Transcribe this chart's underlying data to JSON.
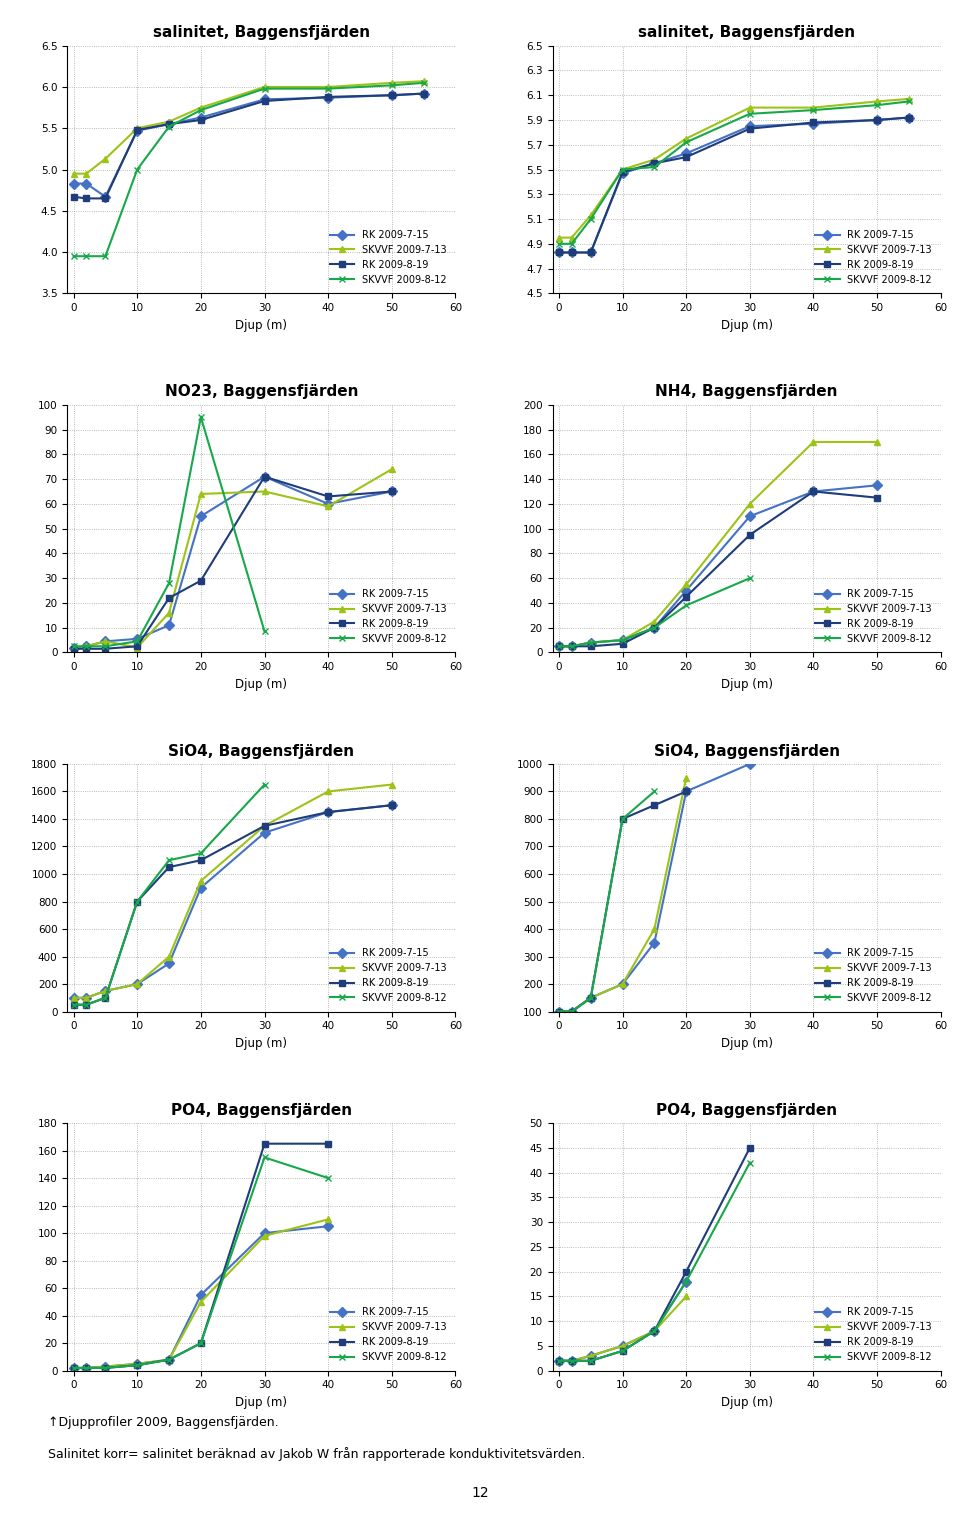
{
  "x": [
    0,
    2,
    5,
    10,
    15,
    20,
    30,
    40,
    50,
    55
  ],
  "series_colors": {
    "RK 2009-7-15": "#4472c4",
    "SKVVF 2009-7-13": "#9dc317",
    "RK 2009-8-19": "#1f3d7a",
    "SKVVF 2009-8-12": "#17a84a"
  },
  "series_markers": {
    "RK 2009-7-15": "D",
    "SKVVF 2009-7-13": "^",
    "RK 2009-8-19": "s",
    "SKVVF 2009-8-12": "x"
  },
  "series_names": [
    "RK 2009-7-15",
    "SKVVF 2009-7-13",
    "RK 2009-8-19",
    "SKVVF 2009-8-12"
  ],
  "sal1": {
    "title": "salinitet, Baggensfjärden",
    "ylabel": "",
    "xlabel": "Djup (m)",
    "ylim": [
      3.5,
      6.5
    ],
    "yticks": [
      3.5,
      4.0,
      4.5,
      5.0,
      5.5,
      6.0,
      6.5
    ],
    "data": {
      "RK 2009-7-15": [
        4.83,
        4.83,
        4.67,
        5.47,
        5.55,
        5.63,
        5.85,
        5.87,
        5.9,
        5.92
      ],
      "SKVVF 2009-7-13": [
        4.95,
        4.95,
        5.13,
        5.5,
        5.58,
        5.75,
        6.0,
        6.0,
        6.05,
        6.07
      ],
      "RK 2009-8-19": [
        4.67,
        4.65,
        4.65,
        5.48,
        5.55,
        5.6,
        5.83,
        5.88,
        5.9,
        5.92
      ],
      "SKVVF 2009-8-12": [
        3.95,
        3.95,
        3.95,
        5.0,
        5.52,
        5.72,
        5.98,
        5.98,
        6.02,
        6.05
      ]
    }
  },
  "sal2": {
    "title": "salinitet, Baggensfjärden",
    "ylabel": "",
    "xlabel": "Djup (m)",
    "ylim": [
      4.5,
      6.5
    ],
    "yticks": [
      4.5,
      4.7,
      4.9,
      5.1,
      5.3,
      5.5,
      5.7,
      5.9,
      6.1,
      6.3,
      6.5
    ],
    "data": {
      "RK 2009-7-15": [
        4.83,
        4.83,
        4.83,
        5.47,
        5.55,
        5.63,
        5.85,
        5.87,
        5.9,
        5.92
      ],
      "SKVVF 2009-7-13": [
        4.95,
        4.95,
        5.13,
        5.5,
        5.58,
        5.75,
        6.0,
        6.0,
        6.05,
        6.07
      ],
      "RK 2009-8-19": [
        4.83,
        4.83,
        4.83,
        5.48,
        5.55,
        5.6,
        5.83,
        5.88,
        5.9,
        5.92
      ],
      "SKVVF 2009-8-12": [
        4.9,
        4.9,
        5.1,
        5.5,
        5.52,
        5.72,
        5.95,
        5.98,
        6.02,
        6.05
      ]
    }
  },
  "no23_1": {
    "title": "NO23, Baggensfjärden",
    "ylabel": "",
    "xlabel": "Djup (m)",
    "ylim": [
      0,
      100
    ],
    "yticks": [
      0,
      10,
      20,
      30,
      40,
      50,
      60,
      70,
      80,
      90,
      100
    ],
    "data": {
      "RK 2009-7-15": [
        2.0,
        2.5,
        4.5,
        5.5,
        11.0,
        55.0,
        71.0,
        60.0,
        65.0,
        null
      ],
      "SKVVF 2009-7-13": [
        2.0,
        2.5,
        4.5,
        2.0,
        16.0,
        64.0,
        65.0,
        59.0,
        74.0,
        null
      ],
      "RK 2009-8-19": [
        1.5,
        1.5,
        1.5,
        2.5,
        22.0,
        29.0,
        71.0,
        63.0,
        65.0,
        null
      ],
      "SKVVF 2009-8-12": [
        2.5,
        2.5,
        2.5,
        4.5,
        28.0,
        95.0,
        8.5,
        null,
        null,
        null
      ]
    }
  },
  "nh4_1": {
    "title": "NH4, Baggensfjärden",
    "ylabel": "",
    "xlabel": "Djup (m)",
    "ylim": [
      0,
      200
    ],
    "yticks": [
      0,
      20,
      40,
      60,
      80,
      100,
      120,
      140,
      160,
      180,
      200
    ],
    "data": {
      "RK 2009-7-15": [
        5.0,
        5.0,
        8.0,
        10.0,
        20.0,
        50.0,
        110.0,
        130.0,
        135.0,
        null
      ],
      "SKVVF 2009-7-13": [
        5.0,
        5.0,
        8.0,
        10.0,
        25.0,
        55.0,
        120.0,
        170.0,
        170.0,
        null
      ],
      "RK 2009-8-19": [
        5.0,
        5.0,
        5.0,
        7.0,
        20.0,
        45.0,
        95.0,
        130.0,
        125.0,
        null
      ],
      "SKVVF 2009-8-12": [
        5.0,
        5.0,
        8.0,
        10.0,
        20.0,
        38.0,
        60.0,
        null,
        null,
        null
      ]
    }
  },
  "sio4_1": {
    "title": "SiO4, Baggensfjärden",
    "ylabel": "",
    "xlabel": "Djup (m)",
    "ylim": [
      0,
      1800
    ],
    "yticks": [
      0,
      200,
      400,
      600,
      800,
      1000,
      1200,
      1400,
      1600,
      1800
    ],
    "data": {
      "RK 2009-7-15": [
        100.0,
        100.0,
        150.0,
        200.0,
        350.0,
        900.0,
        1300.0,
        1450.0,
        1500.0,
        null
      ],
      "SKVVF 2009-7-13": [
        100.0,
        100.0,
        150.0,
        200.0,
        400.0,
        950.0,
        1350.0,
        1600.0,
        1650.0,
        null
      ],
      "RK 2009-8-19": [
        50.0,
        50.0,
        100.0,
        800.0,
        1050.0,
        1100.0,
        1350.0,
        1450.0,
        1500.0,
        null
      ],
      "SKVVF 2009-8-12": [
        50.0,
        50.0,
        100.0,
        800.0,
        1100.0,
        1150.0,
        1650.0,
        null,
        null,
        null
      ]
    }
  },
  "sio4_2": {
    "title": "SiO4, Baggensfjärden",
    "ylabel": "",
    "xlabel": "Djup (m)",
    "ylim": [
      100,
      1000
    ],
    "yticks": [
      100,
      200,
      300,
      400,
      500,
      600,
      700,
      800,
      900,
      1000
    ],
    "data": {
      "RK 2009-7-15": [
        100.0,
        100.0,
        150.0,
        200.0,
        350.0,
        900.0,
        1000.0,
        null,
        null,
        null
      ],
      "SKVVF 2009-7-13": [
        100.0,
        100.0,
        150.0,
        200.0,
        400.0,
        950.0,
        null,
        null,
        null,
        null
      ],
      "RK 2009-8-19": [
        100.0,
        100.0,
        150.0,
        800.0,
        850.0,
        900.0,
        null,
        null,
        null,
        null
      ],
      "SKVVF 2009-8-12": [
        100.0,
        100.0,
        150.0,
        800.0,
        900.0,
        null,
        null,
        null,
        null,
        null
      ]
    }
  },
  "po4_1": {
    "title": "PO4, Baggensfjärden",
    "ylabel": "",
    "xlabel": "Djup (m)",
    "ylim": [
      0,
      180
    ],
    "yticks": [
      0,
      20,
      40,
      60,
      80,
      100,
      120,
      140,
      160,
      180
    ],
    "data": {
      "RK 2009-7-15": [
        2.0,
        2.0,
        3.0,
        5.0,
        8.0,
        55.0,
        100.0,
        105.0,
        null,
        null
      ],
      "SKVVF 2009-7-13": [
        2.0,
        2.0,
        3.0,
        5.0,
        8.0,
        50.0,
        98.0,
        110.0,
        null,
        null
      ],
      "RK 2009-8-19": [
        2.0,
        2.0,
        2.0,
        4.0,
        8.0,
        20.0,
        165.0,
        165.0,
        null,
        null
      ],
      "SKVVF 2009-8-12": [
        2.0,
        2.0,
        2.0,
        4.0,
        8.0,
        20.0,
        155.0,
        140.0,
        null,
        null
      ]
    }
  },
  "po4_2": {
    "title": "PO4, Baggensfjärden",
    "ylabel": "",
    "xlabel": "Djup (m)",
    "ylim": [
      0,
      50
    ],
    "yticks": [
      0,
      5,
      10,
      15,
      20,
      25,
      30,
      35,
      40,
      45,
      50
    ],
    "data": {
      "RK 2009-7-15": [
        2.0,
        2.0,
        3.0,
        5.0,
        8.0,
        18.0,
        null,
        null,
        null,
        null
      ],
      "SKVVF 2009-7-13": [
        2.0,
        2.0,
        3.0,
        5.0,
        8.0,
        15.0,
        null,
        null,
        null,
        null
      ],
      "RK 2009-8-19": [
        2.0,
        2.0,
        2.0,
        4.0,
        8.0,
        20.0,
        45.0,
        null,
        null,
        null
      ],
      "SKVVF 2009-8-12": [
        2.0,
        2.0,
        2.0,
        4.0,
        8.0,
        18.0,
        42.0,
        null,
        null,
        null
      ]
    }
  },
  "footer1": "↑Djupprofiler 2009, Baggensfjärden.",
  "footer2": "Salinitet korr= salinitet beräknad av Jakob W från rapporterade konduktivitetsvärden.",
  "page_num": "12"
}
